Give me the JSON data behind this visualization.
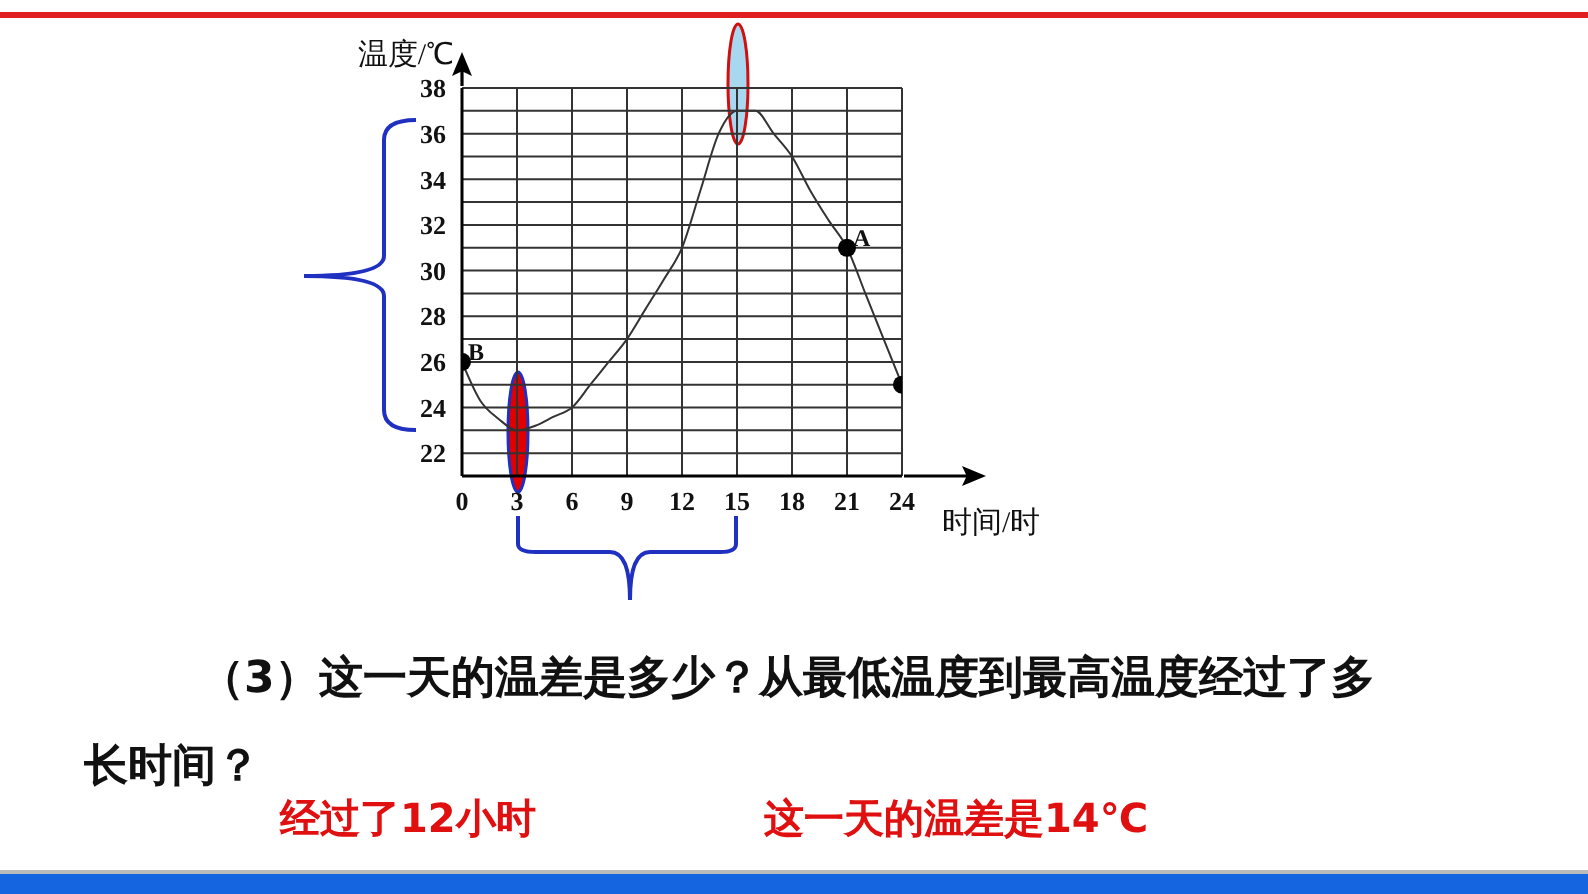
{
  "chart_data": {
    "type": "line",
    "xlabel": "时间/时",
    "ylabel": "温度/℃",
    "x": [
      0,
      1,
      2,
      3,
      4,
      5,
      6,
      7,
      8,
      9,
      10,
      11,
      12,
      13,
      14,
      15,
      16,
      17,
      18,
      19,
      20,
      21,
      22,
      23,
      24
    ],
    "series": [
      {
        "color": "#333333",
        "marker": "none",
        "values": [
          26,
          24.3,
          23.5,
          23,
          23.2,
          23.6,
          24,
          25,
          26,
          27,
          28.3,
          29.6,
          31,
          33.5,
          36,
          37,
          37,
          36,
          35,
          33.5,
          32.2,
          31,
          29,
          27,
          25
        ]
      },
      {
        "type": "scatter",
        "color": "#000000",
        "marker": "circle",
        "x": [
          0,
          21,
          24
        ],
        "values": [
          26,
          31,
          25
        ]
      }
    ],
    "xlim": [
      0,
      24
    ],
    "xticks": [
      0,
      3,
      6,
      9,
      12,
      15,
      18,
      21,
      24
    ],
    "ylim": [
      21,
      38
    ],
    "yticks": [
      {
        "value": 21,
        "label": null
      },
      22,
      {
        "value": 23,
        "label": null
      },
      24,
      {
        "value": 25,
        "label": null
      },
      26,
      {
        "value": 27,
        "label": null
      },
      28,
      {
        "value": 29,
        "label": null
      },
      30,
      {
        "value": 31,
        "label": null
      },
      32,
      {
        "value": 33,
        "label": null
      },
      34,
      {
        "value": 35,
        "label": null
      },
      36,
      {
        "value": 37,
        "label": null
      },
      38
    ],
    "grid": true,
    "legend": false,
    "annotations": [
      {
        "text": "A",
        "x": 21,
        "y": 31
      },
      {
        "text": "B",
        "x": 0,
        "y": 26
      },
      "（3）这一天的温差是多少？从最低温度到最高温度经过了多长时间？",
      "经过了12小时",
      "这一天的温差是14℃"
    ]
  }
}
